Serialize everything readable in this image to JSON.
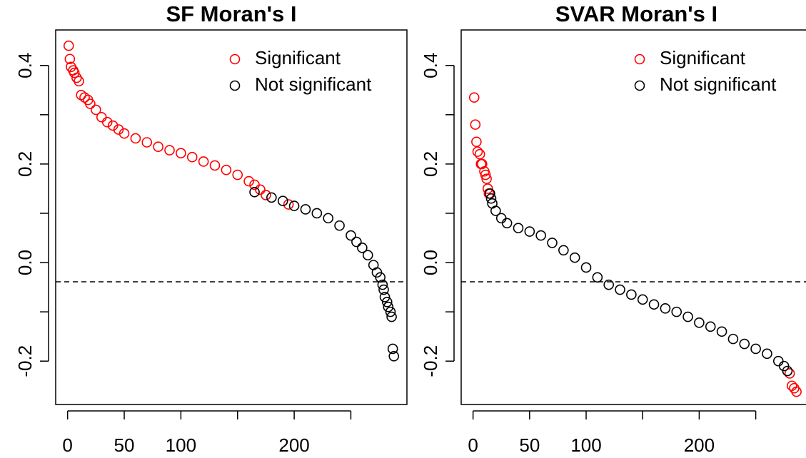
{
  "chart_data": [
    {
      "type": "scatter",
      "title": "SF Moran's I",
      "xlim": [
        -10.5,
        299.5
      ],
      "ylim": [
        -0.288,
        0.472
      ],
      "xticks": [
        0,
        50,
        100,
        {
          "value": 150,
          "label": null
        },
        200,
        {
          "value": 250,
          "label": null
        }
      ],
      "yticks": [
        {
          "value": -0.2,
          "label": "-0.2"
        },
        {
          "value": -0.1,
          "label": null
        },
        {
          "value": 0,
          "label": "0.0"
        },
        {
          "value": 0.1,
          "label": null
        },
        {
          "value": 0.2,
          "label": "0.2"
        },
        {
          "value": 0.3,
          "label": null
        },
        {
          "value": 0.4,
          "label": "0.4"
        }
      ],
      "hline": -0.039,
      "legend": "topright",
      "series": [
        {
          "name": "Significant",
          "color": "#ff0000",
          "x": [
            1,
            2,
            3,
            5,
            6,
            8,
            10,
            12,
            15,
            18,
            20,
            25,
            30,
            35,
            40,
            45,
            50,
            60,
            70,
            80,
            90,
            100,
            110,
            120,
            130,
            140,
            150,
            160,
            165,
            170,
            175,
            195
          ],
          "values": [
            0.44,
            0.413,
            0.397,
            0.39,
            0.385,
            0.375,
            0.368,
            0.34,
            0.335,
            0.33,
            0.322,
            0.31,
            0.295,
            0.285,
            0.278,
            0.27,
            0.262,
            0.252,
            0.244,
            0.235,
            0.228,
            0.222,
            0.214,
            0.205,
            0.197,
            0.188,
            0.178,
            0.165,
            0.158,
            0.148,
            0.137,
            0.118
          ]
        },
        {
          "name": "Not significant",
          "color": "#000000",
          "x": [
            165,
            180,
            190,
            200,
            210,
            220,
            230,
            240,
            250,
            255,
            260,
            265,
            270,
            273,
            276,
            278,
            279,
            280,
            282,
            283,
            285,
            286,
            287,
            288
          ],
          "values": [
            0.143,
            0.132,
            0.125,
            0.115,
            0.108,
            0.1,
            0.09,
            0.075,
            0.055,
            0.042,
            0.03,
            0.015,
            -0.005,
            -0.02,
            -0.03,
            -0.045,
            -0.055,
            -0.07,
            -0.08,
            -0.09,
            -0.1,
            -0.11,
            -0.175,
            -0.19
          ]
        }
      ]
    },
    {
      "type": "scatter",
      "title": "SVAR Moran's I",
      "xlim": [
        -10.5,
        299.5
      ],
      "ylim": [
        -0.288,
        0.472
      ],
      "xticks": [
        0,
        50,
        100,
        {
          "value": 150,
          "label": null
        },
        200,
        {
          "value": 250,
          "label": null
        }
      ],
      "yticks": [
        {
          "value": -0.2,
          "label": "-0.2"
        },
        {
          "value": -0.1,
          "label": null
        },
        {
          "value": 0,
          "label": "0.0"
        },
        {
          "value": 0.1,
          "label": null
        },
        {
          "value": 0.2,
          "label": "0.2"
        },
        {
          "value": 0.3,
          "label": null
        },
        {
          "value": 0.4,
          "label": "0.4"
        }
      ],
      "hline": -0.039,
      "legend": "topright",
      "series": [
        {
          "name": "Significant",
          "color": "#ff0000",
          "x": [
            1,
            2,
            3,
            4,
            6,
            7,
            8,
            10,
            11,
            12,
            13,
            14,
            280,
            282,
            284,
            286
          ],
          "values": [
            0.335,
            0.28,
            0.245,
            0.225,
            0.22,
            0.2,
            0.2,
            0.185,
            0.178,
            0.17,
            0.15,
            0.14,
            -0.225,
            -0.25,
            -0.255,
            -0.262
          ]
        },
        {
          "name": "Not significant",
          "color": "#000000",
          "x": [
            15,
            16,
            17,
            20,
            25,
            30,
            40,
            50,
            60,
            70,
            80,
            90,
            100,
            110,
            120,
            130,
            140,
            150,
            160,
            170,
            180,
            190,
            200,
            210,
            220,
            230,
            240,
            250,
            260,
            270,
            275,
            278
          ],
          "values": [
            0.14,
            0.13,
            0.12,
            0.105,
            0.09,
            0.08,
            0.07,
            0.063,
            0.055,
            0.04,
            0.025,
            0.01,
            -0.01,
            -0.03,
            -0.045,
            -0.055,
            -0.065,
            -0.075,
            -0.085,
            -0.093,
            -0.1,
            -0.11,
            -0.122,
            -0.13,
            -0.14,
            -0.155,
            -0.165,
            -0.175,
            -0.185,
            -0.2,
            -0.21,
            -0.22
          ]
        }
      ]
    }
  ]
}
